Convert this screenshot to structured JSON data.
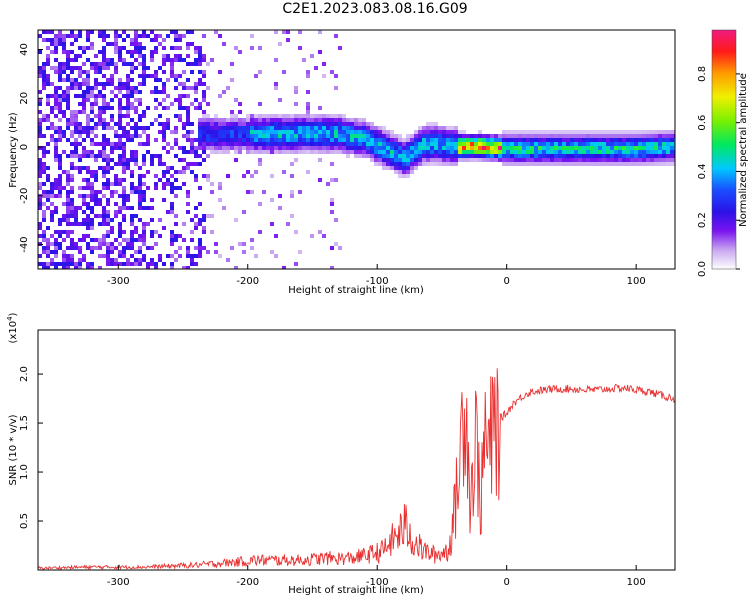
{
  "title": "C2E1.2023.083.08.16.G09",
  "chart_data": [
    {
      "type": "heatmap",
      "xlabel": "Height of straight line (km)",
      "ylabel": "Frequency (Hz)",
      "xlim": [
        -362,
        130
      ],
      "ylim": [
        -50,
        48
      ],
      "xticks": [
        -300,
        -200,
        -100,
        0,
        100
      ],
      "yticks": [
        -40,
        -20,
        0,
        20,
        40
      ],
      "colorbar": {
        "label": "Normalized spectral amplitude",
        "range": [
          0,
          0.98
        ],
        "ticks": [
          0.0,
          0.2,
          0.4,
          0.6,
          0.8
        ],
        "colormap": "white-purple-blue-cyan-green-yellow-orange-red-magenta"
      },
      "ridge": {
        "x": [
          -235,
          -200,
          -170,
          -150,
          -130,
          -110,
          -95,
          -80,
          -65,
          -55,
          -45,
          -35,
          -20,
          0,
          20,
          50,
          100,
          130
        ],
        "y": [
          6,
          6,
          6,
          6.5,
          6,
          4,
          0,
          -4,
          2,
          2,
          1,
          1,
          1,
          0,
          0,
          0,
          0,
          1
        ]
      }
    },
    {
      "type": "line",
      "xlabel": "Height of straight line (km)",
      "ylabel": "SNR (10 * v/v)",
      "exponent_label": "(x10",
      "exponent_power": "4",
      "exponent_close": ")",
      "xlim": [
        -362,
        130
      ],
      "ylim": [
        0,
        2.45
      ],
      "xticks": [
        -300,
        -200,
        -100,
        0,
        100
      ],
      "yticks": [
        0.5,
        1.0,
        1.5,
        2.0
      ],
      "color": "#e83030",
      "series": [
        {
          "x": [
            -362,
            -320,
            -280,
            -240,
            -210,
            -195,
            -180,
            -160,
            -140,
            -120,
            -105,
            -95,
            -85,
            -78,
            -72,
            -65,
            -55,
            -45,
            -40,
            -37,
            -34,
            -32,
            -30,
            -28,
            -26,
            -24,
            -22,
            -20,
            -17,
            -15,
            -12,
            -10,
            -8,
            -5,
            0,
            5,
            10,
            15,
            20,
            30,
            40,
            50,
            60,
            70,
            80,
            90,
            100,
            110,
            120,
            130
          ],
          "y": [
            0.02,
            0.03,
            0.03,
            0.05,
            0.08,
            0.1,
            0.1,
            0.1,
            0.12,
            0.12,
            0.16,
            0.2,
            0.35,
            0.45,
            0.3,
            0.2,
            0.15,
            0.2,
            0.6,
            1.0,
            1.5,
            2.1,
            1.2,
            0.7,
            1.0,
            1.3,
            1.1,
            0.6,
            1.4,
            1.2,
            1.3,
            1.4,
            1.5,
            1.55,
            1.6,
            1.7,
            1.75,
            1.8,
            1.82,
            1.84,
            1.85,
            1.85,
            1.84,
            1.84,
            1.85,
            1.86,
            1.84,
            1.82,
            1.78,
            1.75
          ]
        }
      ]
    }
  ]
}
